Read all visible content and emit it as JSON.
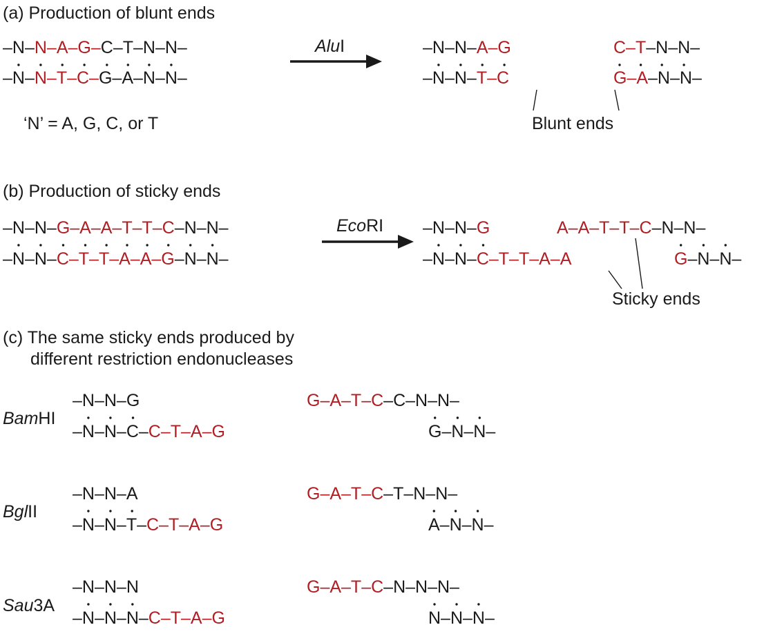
{
  "colors": {
    "dark": "#1a1a1a",
    "red": "#b01e23"
  },
  "panels": {
    "a": {
      "heading": "(a) Production of blunt ends",
      "enzyme_italic": "Alu",
      "enzyme_roman": "I",
      "note": "‘N’ = A, G, C, or T",
      "callout": "Blunt ends"
    },
    "b": {
      "heading": "(b) Production of sticky ends",
      "enzyme_italic": "Eco",
      "enzyme_roman": "RI",
      "callout": "Sticky ends"
    },
    "c": {
      "heading_line1": "(c)  The same sticky ends produced by",
      "heading_line2": "different restriction endonucleases",
      "enzymes": [
        {
          "italic": "Bam",
          "roman": "HI"
        },
        {
          "italic": "Bgl",
          "roman": "II"
        },
        {
          "italic": "Sau",
          "roman": "3A"
        }
      ]
    }
  },
  "sequences": {
    "a_in_top": {
      "text": "–N–N–A–G–C–T–N–N–",
      "red": [
        [
          3,
          9
        ]
      ]
    },
    "a_in_bot": {
      "text": "–N–N–T–C–G–A–N–N–",
      "red": [
        [
          3,
          9
        ]
      ]
    },
    "a_left_top": {
      "text": "–N–N–A–G",
      "red": [
        [
          5,
          8
        ]
      ]
    },
    "a_left_bot": {
      "text": "–N–N–T–C",
      "red": [
        [
          5,
          8
        ]
      ]
    },
    "a_right_top": {
      "text": "C–T–N–N–",
      "red": [
        [
          0,
          3
        ]
      ]
    },
    "a_right_bot": {
      "text": "G–A–N–N–",
      "red": [
        [
          0,
          3
        ]
      ]
    },
    "b_in_top": {
      "text": "–N–N–G–A–A–T–T–C–N–N–",
      "red": [
        [
          5,
          16
        ]
      ]
    },
    "b_in_bot": {
      "text": "–N–N–C–T–T–A–A–G–N–N–",
      "red": [
        [
          5,
          16
        ]
      ]
    },
    "b_left_top": {
      "text": "–N–N–G",
      "red": [
        [
          5,
          6
        ]
      ]
    },
    "b_left_bot": {
      "text": "–N–N–C–T–T–A–A",
      "red": [
        [
          5,
          14
        ]
      ]
    },
    "b_right_top": {
      "text": "A–A–T–T–C–N–N–",
      "red": [
        [
          0,
          9
        ]
      ]
    },
    "b_right_bot": {
      "text": "G–N–N–",
      "red": [
        [
          0,
          1
        ]
      ]
    },
    "bam_l_top": {
      "text": "–N–N–G",
      "red": []
    },
    "bam_l_bot": {
      "text": "–N–N–C–C–T–A–G",
      "red": [
        [
          7,
          14
        ]
      ]
    },
    "bam_r_top": {
      "text": "G–A–T–C–C–N–N–",
      "red": [
        [
          0,
          7
        ]
      ]
    },
    "bam_r_bot": {
      "text": "G–N–N–",
      "red": []
    },
    "bgl_l_top": {
      "text": "–N–N–A",
      "red": []
    },
    "bgl_l_bot": {
      "text": "–N–N–T–C–T–A–G",
      "red": [
        [
          7,
          14
        ]
      ]
    },
    "bgl_r_top": {
      "text": "G–A–T–C–T–N–N–",
      "red": [
        [
          0,
          7
        ]
      ]
    },
    "bgl_r_bot": {
      "text": "A–N–N–",
      "red": []
    },
    "sau_l_top": {
      "text": "–N–N–N",
      "red": []
    },
    "sau_l_bot": {
      "text": "–N–N–N–C–T–A–G",
      "red": [
        [
          7,
          14
        ]
      ]
    },
    "sau_r_top": {
      "text": "G–A–T–C–N–N–N–",
      "red": [
        [
          0,
          7
        ]
      ]
    },
    "sau_r_bot": {
      "text": "N–N–N–",
      "red": []
    }
  }
}
